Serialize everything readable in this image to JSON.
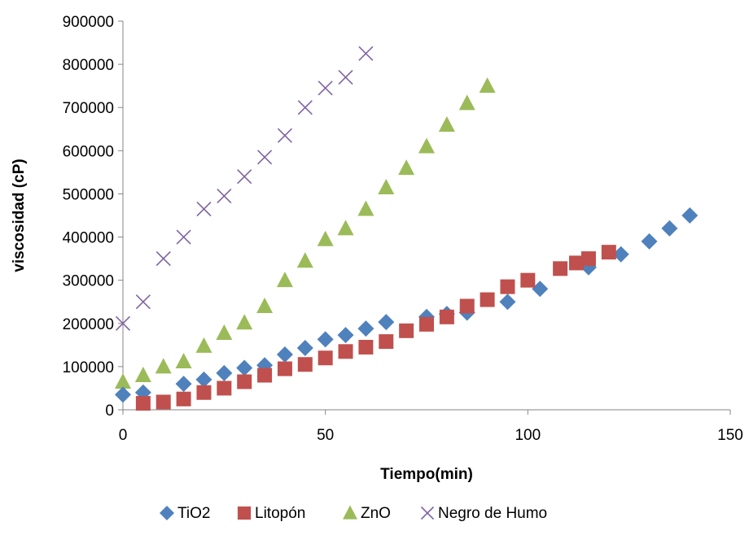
{
  "chart_data": {
    "type": "scatter",
    "title": "",
    "xlabel": "Tiempo(min)",
    "ylabel": "viscosidad (cP)",
    "xlim": [
      0,
      150
    ],
    "ylim": [
      0,
      900000
    ],
    "x_ticks": [
      0,
      50,
      100,
      150
    ],
    "y_ticks": [
      0,
      100000,
      200000,
      300000,
      400000,
      500000,
      600000,
      700000,
      800000,
      900000
    ],
    "grid": false,
    "legend_position": "bottom",
    "series": [
      {
        "name": "TiO2",
        "marker": "diamond",
        "color": "#4f81bd",
        "x": [
          0,
          5,
          15,
          20,
          25,
          30,
          35,
          40,
          45,
          50,
          55,
          60,
          65,
          75,
          80,
          85,
          95,
          103,
          115,
          123,
          130,
          135,
          140
        ],
        "y": [
          35000,
          40000,
          60000,
          70000,
          85000,
          97000,
          103000,
          128000,
          143000,
          163000,
          173000,
          188000,
          203000,
          215000,
          222000,
          225000,
          250000,
          280000,
          330000,
          360000,
          390000,
          420000,
          450000
        ]
      },
      {
        "name": "Litopón",
        "marker": "square",
        "color": "#c0504d",
        "x": [
          5,
          10,
          15,
          20,
          25,
          30,
          35,
          40,
          45,
          50,
          55,
          60,
          65,
          70,
          75,
          80,
          85,
          90,
          95,
          100,
          108,
          112,
          115,
          120
        ],
        "y": [
          15000,
          18000,
          25000,
          40000,
          50000,
          65000,
          80000,
          95000,
          105000,
          120000,
          135000,
          145000,
          158000,
          183000,
          198000,
          215000,
          240000,
          255000,
          285000,
          300000,
          327000,
          340000,
          350000,
          365000
        ]
      },
      {
        "name": "ZnO",
        "marker": "triangle",
        "color": "#9bbb59",
        "x": [
          0,
          5,
          10,
          15,
          20,
          25,
          30,
          35,
          40,
          45,
          50,
          55,
          60,
          65,
          70,
          75,
          80,
          85,
          90
        ],
        "y": [
          65000,
          80000,
          100000,
          112000,
          148000,
          178000,
          202000,
          240000,
          300000,
          345000,
          395000,
          420000,
          465000,
          515000,
          560000,
          610000,
          660000,
          710000,
          750000
        ]
      },
      {
        "name": "Negro de Humo",
        "marker": "x",
        "color": "#8064a2",
        "x": [
          0,
          5,
          10,
          15,
          20,
          25,
          30,
          35,
          40,
          45,
          50,
          55,
          60
        ],
        "y": [
          200000,
          250000,
          350000,
          400000,
          465000,
          495000,
          540000,
          585000,
          635000,
          700000,
          745000,
          770000,
          825000
        ]
      }
    ]
  }
}
